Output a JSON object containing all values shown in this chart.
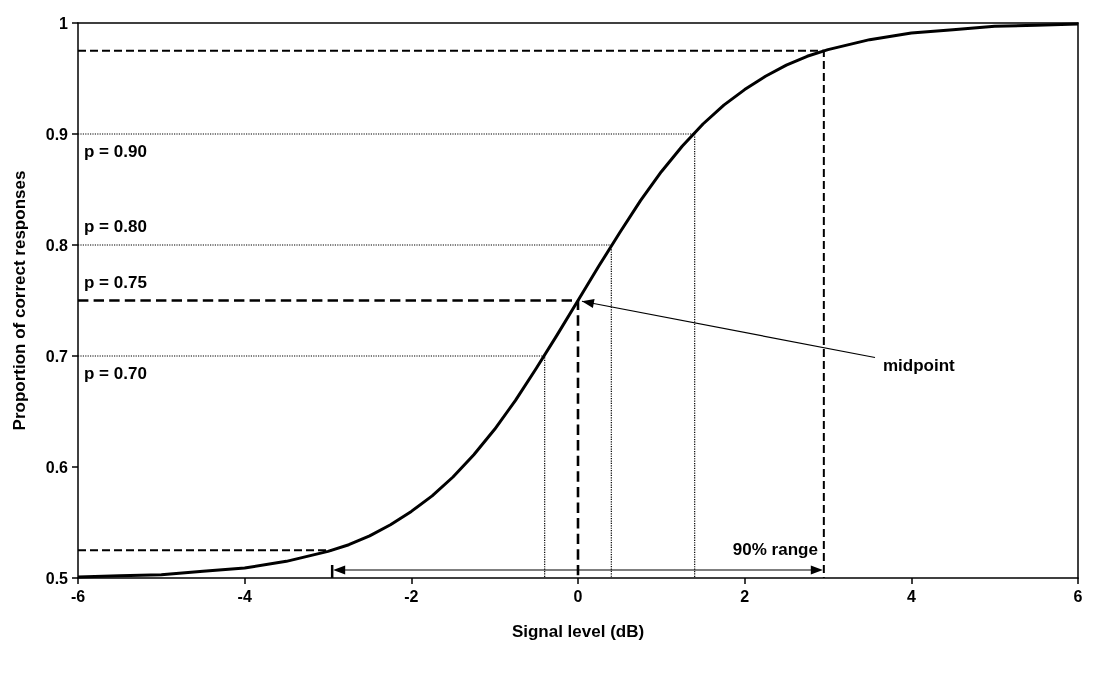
{
  "chart_data": {
    "type": "line",
    "xlabel": "Signal level (dB)",
    "ylabel": "Proportion of correct responses",
    "xlim": [
      -6,
      6
    ],
    "xticks": [
      -6,
      -4,
      -2,
      0,
      2,
      4,
      6
    ],
    "ylim": [
      0.5,
      1
    ],
    "yticks": [
      0.5,
      0.6,
      0.7,
      0.8,
      0.9,
      1
    ],
    "grid": false,
    "marker": "none",
    "series": [
      {
        "color": "#000000",
        "line_style": "solid",
        "x": [
          -6,
          -5.5,
          -5,
          -4.5,
          -4,
          -3.5,
          -3,
          -2.75,
          -2.5,
          -2.25,
          -2,
          -1.75,
          -1.5,
          -1.25,
          -1,
          -0.75,
          -0.5,
          -0.25,
          0,
          0.25,
          0.5,
          0.75,
          1,
          1.25,
          1.5,
          1.75,
          2,
          2.25,
          2.5,
          2.75,
          3,
          3.5,
          4,
          4.5,
          5,
          5.5,
          6
        ],
        "values": [
          0.501,
          0.502,
          0.503,
          0.506,
          0.509,
          0.515,
          0.524,
          0.53,
          0.538,
          0.548,
          0.56,
          0.574,
          0.591,
          0.611,
          0.634,
          0.66,
          0.689,
          0.719,
          0.75,
          0.781,
          0.811,
          0.84,
          0.866,
          0.889,
          0.909,
          0.926,
          0.94,
          0.952,
          0.962,
          0.97,
          0.976,
          0.985,
          0.991,
          0.994,
          0.997,
          0.998,
          0.999
        ]
      },
      {
        "color": "#000000",
        "line_style": "dashed",
        "x": [
          -6,
          2.95,
          2.95
        ],
        "values": [
          0.975,
          0.975,
          0.5
        ]
      },
      {
        "color": "#000000",
        "line_style": "dashed",
        "x": [
          -6,
          0,
          0
        ],
        "values": [
          0.75,
          0.75,
          0.5
        ]
      },
      {
        "color": "#000000",
        "line_style": "dashed",
        "x": [
          -6,
          -2.95
        ],
        "values": [
          0.525,
          0.525
        ]
      },
      {
        "color": "#000000",
        "line_style": "dotted",
        "x": [
          -6,
          1.4,
          1.4
        ],
        "values": [
          0.9,
          0.9,
          0.5
        ]
      },
      {
        "color": "#000000",
        "line_style": "dotted",
        "x": [
          -6,
          0.4,
          0.4
        ],
        "values": [
          0.8,
          0.8,
          0.5
        ]
      },
      {
        "color": "#000000",
        "line_style": "dotted",
        "x": [
          -6,
          -0.4,
          -0.4
        ],
        "values": [
          0.7,
          0.7,
          0.5
        ]
      }
    ],
    "annotations": [
      {
        "text": "p = 0.90",
        "y": 0.9
      },
      {
        "text": "p = 0.80",
        "y": 0.8
      },
      {
        "text": "p = 0.75",
        "y": 0.75
      },
      {
        "text": "p = 0.70",
        "y": 0.7
      },
      {
        "text": "midpoint",
        "x": 0,
        "y": 0.75
      },
      "90% range"
    ]
  }
}
